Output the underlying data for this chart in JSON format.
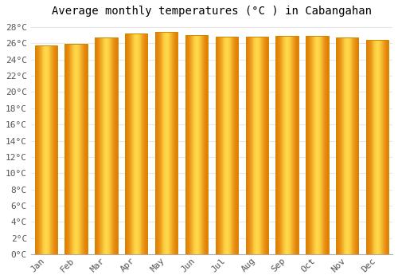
{
  "title": "Average monthly temperatures (°C ) in Cabangahan",
  "months": [
    "Jan",
    "Feb",
    "Mar",
    "Apr",
    "May",
    "Jun",
    "Jul",
    "Aug",
    "Sep",
    "Oct",
    "Nov",
    "Dec"
  ],
  "values": [
    25.8,
    25.9,
    26.7,
    27.2,
    27.4,
    27.0,
    26.8,
    26.8,
    26.9,
    26.9,
    26.7,
    26.4
  ],
  "bar_color_left": "#E07800",
  "bar_color_center": "#FFD84A",
  "bar_color_right": "#E08000",
  "bar_edge_color": "#CC8800",
  "background_color": "#FFFFFF",
  "plot_bg_color": "#FFFFFF",
  "grid_color": "#E8E8E8",
  "ytick_min": 0,
  "ytick_max": 28,
  "ytick_step": 2,
  "title_fontsize": 10,
  "tick_fontsize": 8,
  "font_family": "monospace"
}
